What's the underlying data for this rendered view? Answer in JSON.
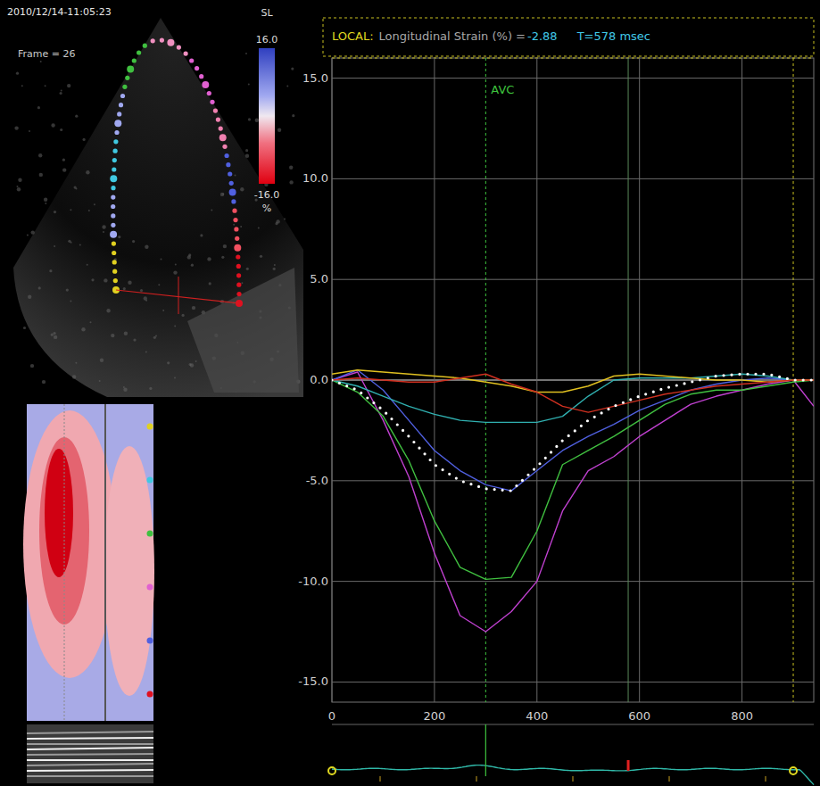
{
  "chart_data": {
    "type": "line",
    "header": {
      "prefix": "LOCAL:",
      "text": "Longitudinal Strain (%) =",
      "value": "-2.88",
      "time": "T=578 msec"
    },
    "x": [
      0,
      50,
      100,
      150,
      200,
      250,
      300,
      350,
      400,
      450,
      500,
      550,
      600,
      650,
      700,
      750,
      800,
      850,
      900,
      940
    ],
    "xlim": [
      0,
      940
    ],
    "xticks": [
      0,
      200,
      400,
      600,
      800
    ],
    "ylim": [
      -16,
      16
    ],
    "yticks": [
      {
        "value": 15,
        "label": "15.0"
      },
      {
        "value": 10,
        "label": "10.0"
      },
      {
        "value": 5,
        "label": "5.0"
      },
      {
        "value": 0,
        "label": "0.0"
      },
      {
        "value": -5,
        "label": "-5.0"
      },
      {
        "value": -10,
        "label": "-10.0"
      },
      {
        "value": -15,
        "label": "-15.0"
      }
    ],
    "grid": true,
    "series": [
      {
        "color": "#c040d0",
        "values": [
          0,
          0.4,
          -2,
          -4.8,
          -8.6,
          -11.7,
          -12.5,
          -11.5,
          -10,
          -6.5,
          -4.5,
          -3.8,
          -2.8,
          -2,
          -1.2,
          -0.8,
          -0.5,
          -0.2,
          0,
          -1.3
        ]
      },
      {
        "color": "#40c040",
        "values": [
          0,
          -0.6,
          -1.8,
          -4,
          -7,
          -9.3,
          -9.9,
          -9.8,
          -7.5,
          -4.2,
          -3.5,
          -2.8,
          -2,
          -1.2,
          -0.7,
          -0.5,
          -0.5,
          -0.3,
          -0.1,
          0
        ]
      },
      {
        "color": "#5060e0",
        "values": [
          0,
          0.5,
          -0.5,
          -2,
          -3.5,
          -4.5,
          -5.2,
          -5.5,
          -4.5,
          -3.5,
          -2.8,
          -2.2,
          -1.5,
          -1,
          -0.5,
          -0.2,
          0,
          0.1,
          0,
          0
        ]
      },
      {
        "color": "#30b0b0",
        "values": [
          0,
          -0.3,
          -0.8,
          -1.3,
          -1.7,
          -2,
          -2.1,
          -2.1,
          -2.1,
          -1.8,
          -0.8,
          0,
          0.1,
          0.1,
          0.1,
          0.2,
          0.3,
          0.2,
          0,
          0
        ]
      },
      {
        "color": "#e0c020",
        "values": [
          0.3,
          0.5,
          0.4,
          0.3,
          0.2,
          0.1,
          -0.1,
          -0.3,
          -0.6,
          -0.6,
          -0.3,
          0.2,
          0.3,
          0.2,
          0.1,
          0,
          0,
          -0.1,
          0,
          0
        ]
      },
      {
        "color": "#d03020",
        "values": [
          0,
          0.1,
          0,
          -0.1,
          -0.1,
          0.1,
          0.3,
          -0.2,
          -0.6,
          -1.3,
          -1.6,
          -1.3,
          -1,
          -0.7,
          -0.5,
          -0.3,
          -0.2,
          -0.1,
          0,
          0
        ]
      },
      {
        "color": "#ffffff",
        "line_style": "dotted",
        "values": [
          0,
          -0.5,
          -1.5,
          -2.8,
          -4.2,
          -5,
          -5.4,
          -5.5,
          -4.3,
          -3,
          -2,
          -1.3,
          -0.8,
          -0.4,
          -0.1,
          0.2,
          0.3,
          0.3,
          0,
          0
        ]
      }
    ],
    "annotations": [
      {
        "label": "AVC",
        "x": 300,
        "color": "#3ec43e",
        "line_style": "dashed"
      }
    ],
    "cursor_x": 578,
    "cycle_end_x": 900,
    "image_panel": {
      "timestamp": "2010/12/14-11:05:23",
      "frame": "Frame = 26",
      "colorbar": {
        "title": "SL",
        "range": [
          -16,
          16
        ],
        "ticks": [
          {
            "value": 16,
            "label": "16.0"
          },
          {
            "value": -16,
            "label": "-16.0"
          }
        ],
        "unit": "%"
      }
    }
  }
}
